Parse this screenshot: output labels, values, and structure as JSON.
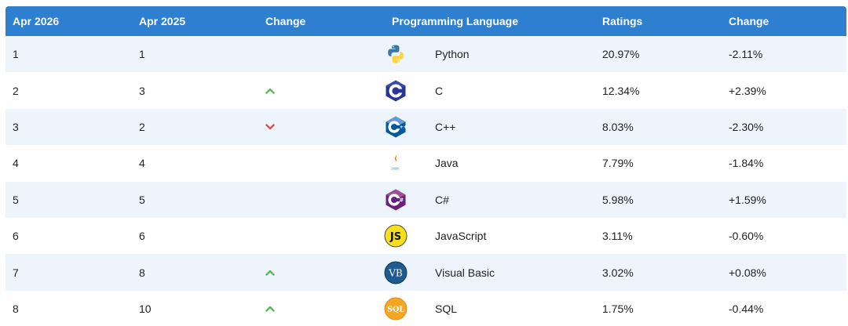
{
  "header": {
    "col1": "Apr 2026",
    "col2": "Apr 2025",
    "col3": "Change",
    "col4": "Programming Language",
    "col6": "Ratings",
    "col7": "Change"
  },
  "rows": [
    {
      "rank_now": "1",
      "rank_prev": "1",
      "trend": "none",
      "icon": "python-logo-icon",
      "language": "Python",
      "rating": "20.97%",
      "change": "-2.11%"
    },
    {
      "rank_now": "2",
      "rank_prev": "3",
      "trend": "up",
      "icon": "c-logo-icon",
      "language": "C",
      "rating": "12.34%",
      "change": "+2.39%"
    },
    {
      "rank_now": "3",
      "rank_prev": "2",
      "trend": "down",
      "icon": "cpp-logo-icon",
      "language": "C++",
      "rating": "8.03%",
      "change": "-2.30%"
    },
    {
      "rank_now": "4",
      "rank_prev": "4",
      "trend": "none",
      "icon": "java-logo-icon",
      "language": "Java",
      "rating": "7.79%",
      "change": "-1.84%"
    },
    {
      "rank_now": "5",
      "rank_prev": "5",
      "trend": "none",
      "icon": "csharp-logo-icon",
      "language": "C#",
      "rating": "5.98%",
      "change": "+1.59%"
    },
    {
      "rank_now": "6",
      "rank_prev": "6",
      "trend": "none",
      "icon": "javascript-logo-icon",
      "language": "JavaScript",
      "rating": "3.11%",
      "change": "-0.60%"
    },
    {
      "rank_now": "7",
      "rank_prev": "8",
      "trend": "up",
      "icon": "visual-basic-logo-icon",
      "language": "Visual Basic",
      "rating": "3.02%",
      "change": "+0.08%"
    },
    {
      "rank_now": "8",
      "rank_prev": "10",
      "trend": "up",
      "icon": "sql-logo-icon",
      "language": "SQL",
      "rating": "1.75%",
      "change": "-0.44%"
    }
  ],
  "logo_text": {
    "javascript": "JS",
    "visual_basic": "VB",
    "sql": "SQL"
  },
  "colors": {
    "header_bg": "#2f7fd0",
    "row_alt_bg": "#eef4fc",
    "trend_up": "#5cb85c",
    "trend_down": "#d9534f"
  }
}
